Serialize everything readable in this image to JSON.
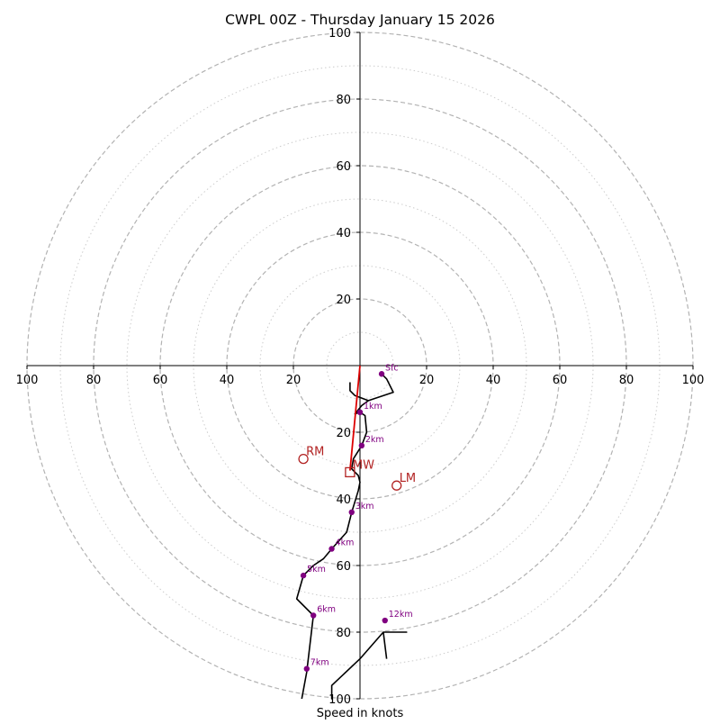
{
  "chart_data": {
    "type": "hodograph",
    "title": "CWPL 00Z - Thursday January 15 2026",
    "xlabel": "Speed in knots",
    "units": "kt",
    "range": 100,
    "ring_major_step": 20,
    "ring_minor_step": 10,
    "tick_labels": [
      "20",
      "40",
      "60",
      "80",
      "100"
    ],
    "colors": {
      "hodograph": "#000000",
      "height_marker": "#800080",
      "storm_motion": "#b22222",
      "shear_vector": "#dd0000",
      "ring_major": "#b3b3b3",
      "ring_minor": "#cccccc",
      "axis": "#000000"
    },
    "hodograph_uv": [
      [
        6.5,
        -2.5
      ],
      [
        8.0,
        -4.0
      ],
      [
        10.0,
        -8.0
      ],
      [
        2.5,
        -10.5
      ],
      [
        0.5,
        -12.0
      ],
      [
        -1.5,
        -14.5
      ],
      [
        0.0,
        -14.0
      ],
      [
        1.5,
        -15.0
      ],
      [
        2.0,
        -20.0
      ],
      [
        0.5,
        -24.0
      ],
      [
        -2.0,
        -28.0
      ],
      [
        -2.5,
        -31.0
      ],
      [
        -0.5,
        -33.0
      ],
      [
        0.0,
        -35.0
      ],
      [
        -0.5,
        -37.5
      ],
      [
        -2.5,
        -44.0
      ],
      [
        -4.0,
        -50.0
      ],
      [
        -8.5,
        -55.0
      ],
      [
        -11.0,
        -58.0
      ],
      [
        -14.0,
        -60.0
      ],
      [
        -17.0,
        -63.0
      ],
      [
        -19.0,
        -70.0
      ],
      [
        -14.0,
        -75.0
      ],
      [
        -16.0,
        -92.0
      ],
      [
        -17.5,
        -100.0
      ]
    ],
    "hodograph_noise_uv": [
      [
        -3.0,
        -5.0
      ],
      [
        -3.0,
        -7.5
      ],
      [
        -1.5,
        -9.0
      ],
      [
        2.5,
        -10.5
      ]
    ],
    "hodograph_upper_uv": [
      [
        -8.5,
        -96.0
      ],
      [
        -8.5,
        -100.0
      ],
      [
        -8.5,
        -96.0
      ],
      [
        0.0,
        -88.0
      ],
      [
        7.0,
        -80.0
      ],
      [
        14.0,
        -80.0
      ],
      [
        7.0,
        -80.0
      ],
      [
        8.0,
        -88.0
      ]
    ],
    "height_markers": [
      {
        "label": "Sfc",
        "u": 6.5,
        "v": -2.5
      },
      {
        "label": "1km",
        "u": 0.0,
        "v": -14.0
      },
      {
        "label": "2km",
        "u": 0.5,
        "v": -24.0
      },
      {
        "label": "3km",
        "u": -2.5,
        "v": -44.0
      },
      {
        "label": "4km",
        "u": -8.5,
        "v": -55.0
      },
      {
        "label": "5km",
        "u": -17.0,
        "v": -63.0
      },
      {
        "label": "6km",
        "u": -14.0,
        "v": -75.0
      },
      {
        "label": "7km",
        "u": -16.0,
        "v": -91.0
      },
      {
        "label": "12km",
        "u": 7.5,
        "v": -76.5
      }
    ],
    "storm_motion": [
      {
        "label": "RM",
        "u": -17.0,
        "v": -28.0,
        "marker": "circle"
      },
      {
        "label": "MW",
        "u": -3.0,
        "v": -32.0,
        "marker": "square"
      },
      {
        "label": "LM",
        "u": 11.0,
        "v": -36.0,
        "marker": "circle"
      }
    ],
    "shear_vector_uv": [
      [
        0.0,
        0.0
      ],
      [
        -3.0,
        -31.5
      ]
    ]
  }
}
